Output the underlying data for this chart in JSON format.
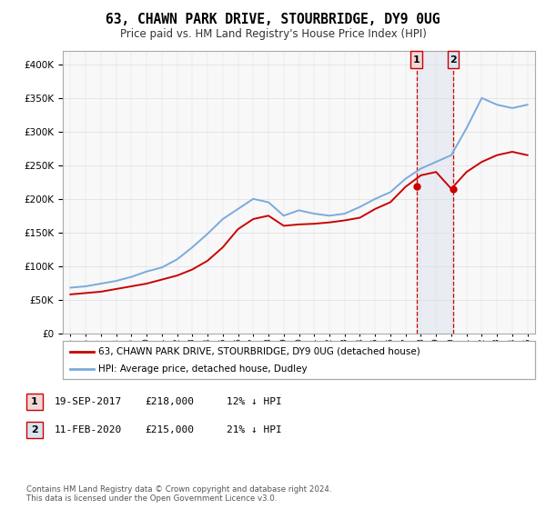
{
  "title": "63, CHAWN PARK DRIVE, STOURBRIDGE, DY9 0UG",
  "subtitle": "Price paid vs. HM Land Registry's House Price Index (HPI)",
  "ylim": [
    0,
    420000
  ],
  "yticks": [
    0,
    50000,
    100000,
    150000,
    200000,
    250000,
    300000,
    350000,
    400000
  ],
  "years": [
    1995,
    1996,
    1997,
    1998,
    1999,
    2000,
    2001,
    2002,
    2003,
    2004,
    2005,
    2006,
    2007,
    2008,
    2009,
    2010,
    2011,
    2012,
    2013,
    2014,
    2015,
    2016,
    2017,
    2018,
    2019,
    2020,
    2021,
    2022,
    2023,
    2024,
    2025
  ],
  "hpi_values": [
    68000,
    70000,
    74000,
    78000,
    84000,
    92000,
    98000,
    110000,
    128000,
    148000,
    170000,
    185000,
    200000,
    195000,
    175000,
    183000,
    178000,
    175000,
    178000,
    188000,
    200000,
    210000,
    230000,
    245000,
    255000,
    265000,
    305000,
    350000,
    340000,
    335000,
    340000
  ],
  "price_values": [
    58000,
    60000,
    62000,
    66000,
    70000,
    74000,
    80000,
    86000,
    95000,
    108000,
    128000,
    155000,
    170000,
    175000,
    160000,
    162000,
    163000,
    165000,
    168000,
    172000,
    185000,
    195000,
    218000,
    235000,
    240000,
    215000,
    240000,
    255000,
    265000,
    270000,
    265000
  ],
  "sale1_year": 2017.72,
  "sale1_price": 218000,
  "sale1_label": "1",
  "sale2_year": 2020.12,
  "sale2_price": 215000,
  "sale2_label": "2",
  "sale1_box_color": "#f0d8d8",
  "sale2_box_color": "#d8e4f0",
  "line_color_price": "#cc0000",
  "line_color_hpi": "#7aaadd",
  "grid_color": "#dddddd",
  "bg_color": "#f8f8f8",
  "legend_label1": "63, CHAWN PARK DRIVE, STOURBRIDGE, DY9 0UG (detached house)",
  "legend_label2": "HPI: Average price, detached house, Dudley",
  "table_row1": [
    "1",
    "19-SEP-2017",
    "£218,000",
    "12% ↓ HPI"
  ],
  "table_row2": [
    "2",
    "11-FEB-2020",
    "£215,000",
    "21% ↓ HPI"
  ],
  "footer": "Contains HM Land Registry data © Crown copyright and database right 2024.\nThis data is licensed under the Open Government Licence v3.0."
}
